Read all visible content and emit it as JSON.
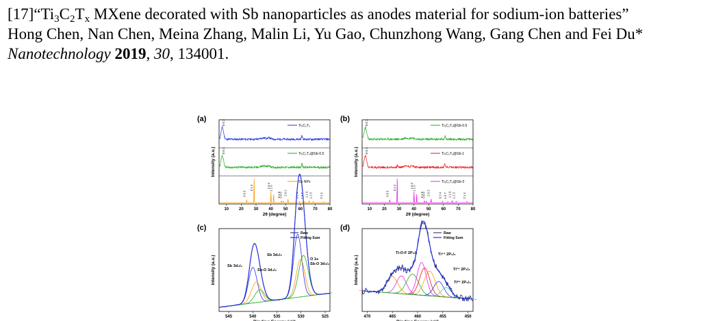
{
  "reference": {
    "number": "[17]",
    "title_parts": [
      "“Ti",
      "3",
      "C",
      "2",
      "T",
      "x",
      " MXene decorated with Sb nanoparticles as anodes material for sodium-ion batteries”"
    ],
    "authors": "Hong Chen, Nan Chen, Meina Zhang, Malin Li, Yu Gao, Chunzhong Wang, Gang Chen and Fei Du*",
    "journal": "Nanotechnology",
    "year": "2019",
    "volume": "30",
    "pages": "134001."
  },
  "colors": {
    "blue": "#2233dd",
    "green": "#22aa22",
    "orange": "#ff9900",
    "red": "#ee1111",
    "magenta": "#ee22ee",
    "navy": "#1a1a6e",
    "axis": "#000000"
  },
  "panels": {
    "a": {
      "label": "(a)",
      "xlabel": "2θ (degree)",
      "ylabel": "Intensity (a.u.)",
      "xticks": [
        "10",
        "20",
        "30",
        "40",
        "50",
        "60",
        "70",
        "80"
      ],
      "xlim": [
        5,
        80
      ],
      "traces": [
        {
          "name": "Ti₃C₂Tₓ",
          "color": "blue",
          "peak_label": "0 0 2"
        },
        {
          "name": "Ti₃C₂Tₓ@Sb-0.5",
          "color": "green",
          "peak_label": "0 0 2"
        },
        {
          "name": "Sb NPs",
          "color": "orange"
        }
      ],
      "sb_ref_lines": [
        {
          "x": 23.7,
          "h": 0.12,
          "label": "0 0 3"
        },
        {
          "x": 28.7,
          "h": 1.0,
          "label": "0 1 2"
        },
        {
          "x": 40.1,
          "h": 0.45,
          "label": "1 0 4"
        },
        {
          "x": 41.9,
          "h": 0.35,
          "label": "1 1 0"
        },
        {
          "x": 47.1,
          "h": 0.08,
          "label": "0 1 5"
        },
        {
          "x": 48.4,
          "h": 0.07,
          "label": "0 0 6"
        },
        {
          "x": 51.6,
          "h": 0.15,
          "label": "2 0 2"
        },
        {
          "x": 59.4,
          "h": 0.05,
          "label": "0 2 4"
        },
        {
          "x": 62.9,
          "h": 0.04,
          "label": "1 0 7"
        },
        {
          "x": 65.9,
          "h": 0.09,
          "label": "1 1 6"
        },
        {
          "x": 68.6,
          "h": 0.05,
          "label": "1 2 2"
        },
        {
          "x": 75.8,
          "h": 0.04,
          "label": "2 1 4"
        }
      ]
    },
    "b": {
      "label": "(b)",
      "xlabel": "2θ (degree)",
      "ylabel": "Intensity (a.u.)",
      "xticks": [
        "10",
        "20",
        "30",
        "40",
        "50",
        "60",
        "70",
        "80"
      ],
      "xlim": [
        5,
        80
      ],
      "traces": [
        {
          "name": "Ti₃C₂Tₓ@Sb-0.5",
          "color": "green",
          "peak_label": "0 0 2"
        },
        {
          "name": "Ti₃C₂Tₓ@Sb-1",
          "color": "red",
          "peak_label": "0 0 2"
        },
        {
          "name": "Ti₃C₂Tₓ@Sb-3",
          "color": "magenta"
        }
      ],
      "sb_ref_lines": [
        {
          "x": 23.7,
          "h": 0.12,
          "label": "0 0 3"
        },
        {
          "x": 28.7,
          "h": 1.0,
          "label": "0 1 2"
        },
        {
          "x": 40.1,
          "h": 0.45,
          "label": "1 0 4"
        },
        {
          "x": 41.9,
          "h": 0.35,
          "label": "1 1 0"
        },
        {
          "x": 47.1,
          "h": 0.08,
          "label": "0 1 5"
        },
        {
          "x": 48.4,
          "h": 0.07,
          "label": "0 0 6"
        },
        {
          "x": 51.6,
          "h": 0.15,
          "label": "2 0 2"
        },
        {
          "x": 59.4,
          "h": 0.05,
          "label": "0 2 4"
        },
        {
          "x": 62.9,
          "h": 0.04,
          "label": "1 0 7"
        },
        {
          "x": 65.9,
          "h": 0.09,
          "label": "1 1 6"
        },
        {
          "x": 68.6,
          "h": 0.05,
          "label": "1 2 2"
        },
        {
          "x": 75.8,
          "h": 0.04,
          "label": "2 1 4"
        }
      ]
    },
    "c": {
      "label": "(c)",
      "xlabel": "Binding Energy (eV)",
      "ylabel": "Intensity (a.u.)",
      "xticks": [
        "545",
        "540",
        "535",
        "530",
        "525"
      ],
      "xlim": [
        547,
        524
      ],
      "legend": [
        "Raw",
        "Fitting Sum"
      ],
      "annotations": [
        "Sb 3d₃/₂",
        "Sb-O 3d₃/₂",
        "Sb 3d₅/₂",
        "O 1s",
        "Sb-O 3d₅/₂"
      ]
    },
    "d": {
      "label": "(d)",
      "xlabel": "Binding Energy (eV)",
      "ylabel": "Intensity (a.u.)",
      "xticks": [
        "470",
        "465",
        "460",
        "455",
        "450"
      ],
      "xlim": [
        471,
        449
      ],
      "legend": [
        "Raw",
        "Fitting Sum"
      ],
      "annotations": [
        "Ti-O-F 2P₃/₂",
        "Ti⁴⁺ 2P₃/₂",
        "Ti³⁺ 2P₁/₂",
        "Ti²⁺ 2P₃/₂"
      ]
    }
  }
}
